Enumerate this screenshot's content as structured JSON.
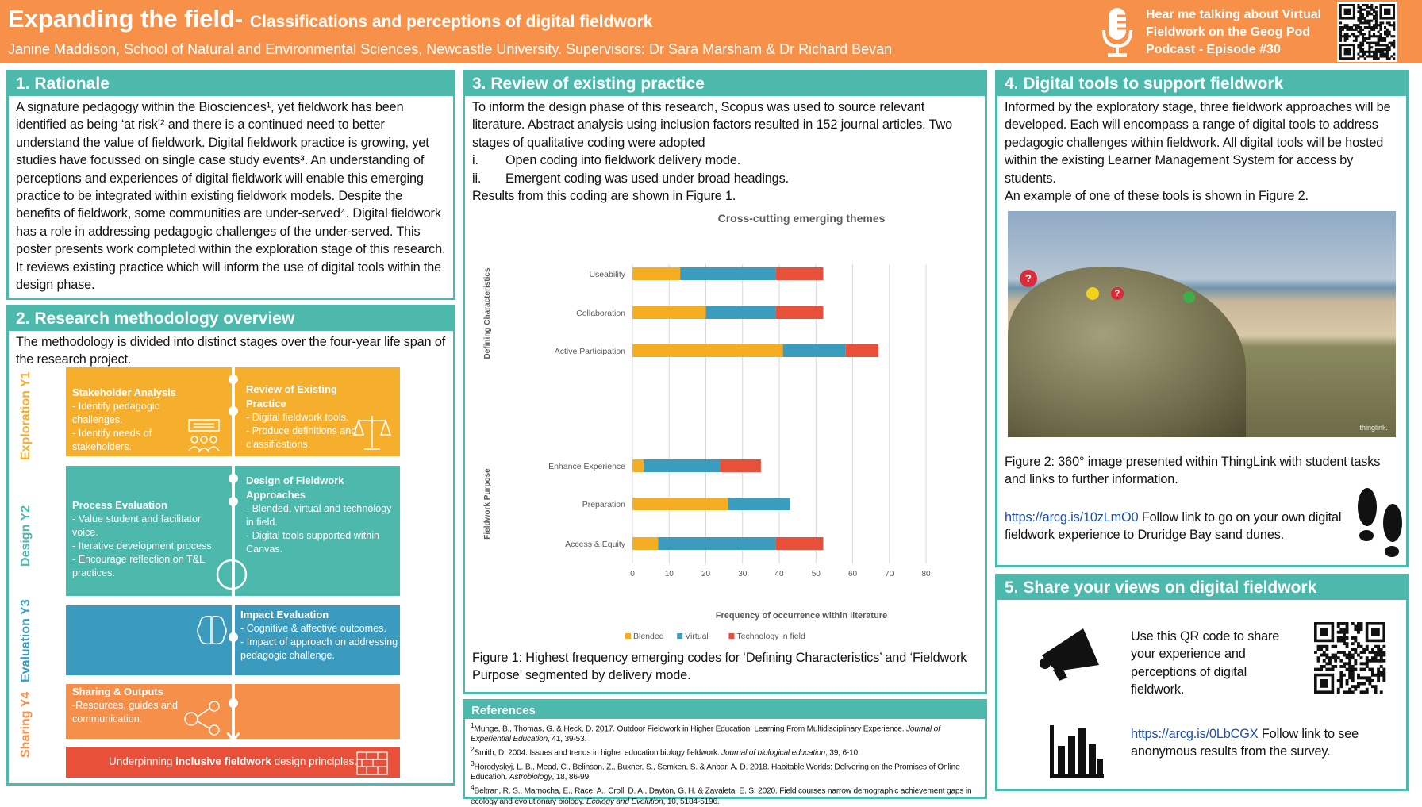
{
  "header": {
    "title": "Expanding the field-",
    "subtitle": "Classifications and perceptions of digital fieldwork",
    "authors": "Janine Maddison, School of Natural and Environmental Sciences, Newcastle University. Supervisors: Dr Sara Marsham & Dr Richard Bevan",
    "podcast": "Hear me talking about Virtual Fieldwork on the Geog Pod Podcast - Episode #30",
    "podcast_icon": "microphone-icon",
    "qr_icon": "qr-code-icon"
  },
  "rationale": {
    "heading": "1.   Rationale",
    "text": "A signature pedagogy within the Biosciences¹, yet fieldwork has been identified as being ‘at risk’² and there is a continued need to better understand the value of fieldwork. Digital fieldwork practice is growing, yet studies have focussed on single case study events³. An understanding of perceptions and experiences of digital fieldwork will enable this emerging practice to be integrated within existing fieldwork models. Despite the benefits of fieldwork, some communities are under-served⁴. Digital fieldwork has a role in addressing pedagogic challenges of the under-served. This poster presents work completed within the exploration stage of this research. It reviews existing practice which will inform the use of digital tools within the design phase."
  },
  "methodology": {
    "heading": "2. Research methodology overview",
    "intro": "The methodology is divided into distinct stages over the four-year life span of the research project.",
    "years": [
      "Exploration Y1",
      "Design Y2",
      "Evaluation Y3",
      "Sharing Y4"
    ],
    "boxes": {
      "stakeholder": {
        "title": "Stakeholder Analysis",
        "items": [
          "- Identify pedagogic challenges.",
          "- Identify needs of stakeholders."
        ]
      },
      "review": {
        "title": "Review of Existing Practice",
        "items": [
          "- Digital fieldwork tools.",
          "- Produce definitions and classifications."
        ]
      },
      "process": {
        "title": "Process Evaluation",
        "items": [
          "- Value student and facilitator voice.",
          "- Iterative development process.",
          "- Encourage reflection on T&L practices."
        ]
      },
      "design": {
        "title": "Design of Fieldwork Approaches",
        "items": [
          "- Blended, virtual and technology in field.",
          "- Digital tools supported within Canvas."
        ]
      },
      "impact": {
        "title": "Impact Evaluation",
        "items": [
          "- Cognitive & affective outcomes.",
          "- Impact of approach on addressing pedagogic challenge."
        ]
      },
      "sharing": {
        "title": "Sharing & Outputs",
        "items": [
          "-Resources, guides and communication."
        ]
      },
      "underpin": {
        "pre": "Underpinning ",
        "bold": "inclusive fieldwork",
        "post": " design principles."
      }
    },
    "colors": {
      "y1": "#F6AE2D",
      "y2": "#4DB8AC",
      "y3": "#3A9BBF",
      "y4": "#F58F4A",
      "base": "#E8503A"
    }
  },
  "review": {
    "heading": "3. Review of existing practice",
    "p1": "To inform the design phase of this research, Scopus was used to source relevant literature. Abstract analysis using inclusion factors resulted in 152 journal articles. Two stages of qualitative coding were adopted",
    "list": [
      {
        "n": "i.",
        "t": "Open coding into fieldwork delivery mode."
      },
      {
        "n": "ii.",
        "t": "Emergent coding was used under broad headings."
      }
    ],
    "p2": "Results from this coding are shown in Figure 1.",
    "caption": "Figure 1: Highest frequency emerging codes for ‘Defining Characteristics’ and ‘Fieldwork Purpose’ segmented by delivery mode."
  },
  "chart_data": {
    "type": "bar",
    "orientation": "horizontal",
    "stacked": true,
    "title": "Cross-cutting emerging themes",
    "xlabel": "Frequency of occurrence within literature",
    "ylabel": "",
    "groups": [
      {
        "name": "Defining Characteristics",
        "categories": [
          "Useability",
          "Collaboration",
          "Active Participation"
        ]
      },
      {
        "name": "Fieldwork Purpose",
        "categories": [
          "Enhance Experience",
          "Preparation",
          "Access & Equity"
        ]
      }
    ],
    "categories": [
      "Useability",
      "Collaboration",
      "Active Participation",
      "Enhance Experience",
      "Preparation",
      "Access & Equity"
    ],
    "series": [
      {
        "name": "Blended",
        "color": "#F5AE22",
        "values": [
          13,
          20,
          41,
          3,
          26,
          7
        ]
      },
      {
        "name": "Virtual",
        "color": "#3B9DBE",
        "values": [
          26,
          19,
          17,
          21,
          17,
          32
        ]
      },
      {
        "name": "Technology in field",
        "color": "#E8503A",
        "values": [
          13,
          13,
          9,
          11,
          0,
          13
        ]
      }
    ],
    "xlim": [
      0,
      80
    ],
    "xticks": [
      "0",
      "10",
      "20",
      "30",
      "40",
      "50",
      "60",
      "70",
      "80"
    ],
    "grid": true,
    "legend": "bottom"
  },
  "references": {
    "heading": "References",
    "items": [
      {
        "n": "1",
        "t": "Munge, B., Thomas, G. & Heck, D. 2017. Outdoor Fieldwork in Higher Education: Learning From Multidisciplinary Experience. ",
        "i": "Journal of Experiential Education",
        "e": ", 41, 39-53."
      },
      {
        "n": "2",
        "t": "Smith, D. 2004. Issues and trends in higher education biology fieldwork. ",
        "i": "Journal of biological education",
        "e": ", 39, 6-10."
      },
      {
        "n": "3",
        "t": "Horodyskyj, L. B., Mead, C., Belinson, Z., Buxner, S., Semken, S. & Anbar, A. D. 2018. Habitable Worlds: Delivering on the Promises of Online Education. ",
        "i": "Astrobiology",
        "e": ", 18, 86-99."
      },
      {
        "n": "4",
        "t": "Beltran, R. S., Marnocha, E., Race, A., Croll, D. A., Dayton, G. H. & Zavaleta, E. S. 2020. Field courses narrow demographic achievement gaps in ecology and evolutionary biology. ",
        "i": "Ecology and Evolution",
        "e": ", 10, 5184-5196."
      }
    ]
  },
  "tools": {
    "heading": "4.  Digital tools to support fieldwork",
    "text": "Informed by the exploratory stage, three fieldwork approaches will be developed. Each will encompass a range of digital tools to address pedagogic challenges within fieldwork. All digital tools will be hosted within the existing Learner Management System for access by students.",
    "text2": "An example of one of these tools is shown in Figure 2.",
    "image_brand": "thinglink.",
    "caption": "Figure 2: 360° image presented within ThingLink with student tasks and links to further information.",
    "link": "https://arcg.is/10zLmO0",
    "link_text": " Follow link to go on your own digital fieldwork experience to Druridge Bay sand dunes.",
    "icon": "footprints-icon"
  },
  "share": {
    "heading": "5. Share your views on digital fieldwork",
    "qr_text": "Use this QR code to share your experience and perceptions of digital fieldwork.",
    "link": "https://arcg.is/0LbCGX",
    "link_text": " Follow link to see anonymous results from the survey.",
    "icons": [
      "megaphone-icon",
      "bar-chart-icon",
      "qr-code-icon"
    ]
  }
}
